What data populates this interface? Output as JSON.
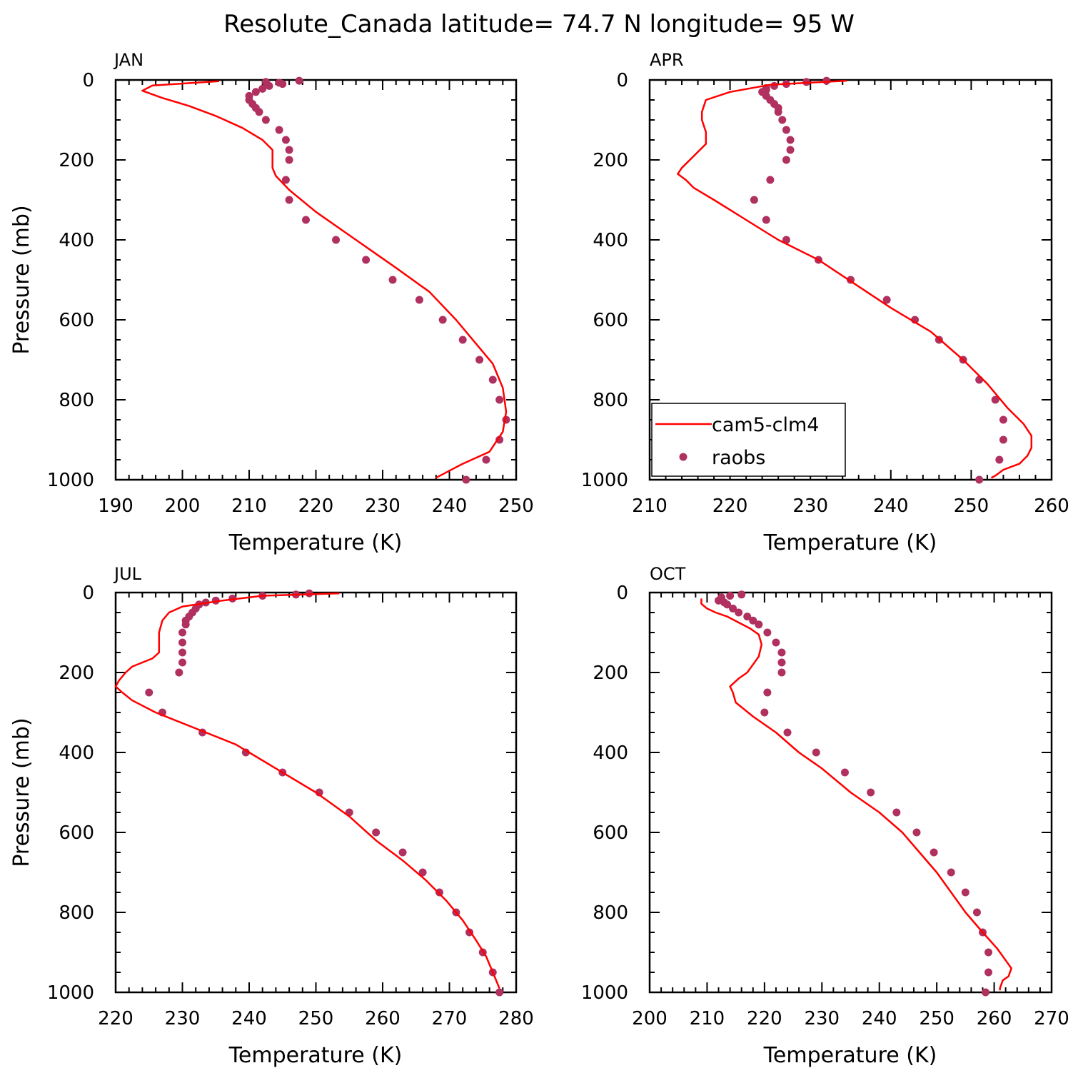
{
  "figure": {
    "title": "Resolute_Canada  latitude= 74.7 N longitude= 95 W"
  },
  "legend": {
    "items": [
      {
        "label": "cam5-clm4",
        "kind": "line"
      },
      {
        "label": "raobs",
        "kind": "dot"
      }
    ]
  },
  "colors": {
    "model": "#ff0000",
    "obs": "#b03060",
    "axes": "#000000",
    "background": "#ffffff"
  },
  "chart_data": [
    {
      "type": "line",
      "panel": "JAN",
      "xlabel": "Temperature (K)",
      "ylabel": "Pressure (mb)",
      "xlim": [
        190,
        250
      ],
      "ylim": [
        1000,
        0
      ],
      "xticks": [
        190,
        200,
        210,
        220,
        230,
        240,
        250
      ],
      "yticks": [
        0,
        200,
        400,
        600,
        800,
        1000
      ],
      "model": {
        "name": "cam5-clm4",
        "points": [
          [
            205.5,
            3
          ],
          [
            195.5,
            14
          ],
          [
            194,
            27
          ],
          [
            197,
            45
          ],
          [
            201,
            65
          ],
          [
            205,
            90
          ],
          [
            209,
            120
          ],
          [
            212,
            150
          ],
          [
            213.5,
            175
          ],
          [
            213.5,
            200
          ],
          [
            213.5,
            220
          ],
          [
            214,
            240
          ],
          [
            216,
            275
          ],
          [
            220,
            330
          ],
          [
            226,
            400
          ],
          [
            232,
            470
          ],
          [
            237,
            530
          ],
          [
            241,
            600
          ],
          [
            244,
            660
          ],
          [
            246.5,
            710
          ],
          [
            248,
            770
          ],
          [
            248.5,
            830
          ],
          [
            248,
            880
          ],
          [
            246,
            930
          ],
          [
            242,
            960
          ],
          [
            238,
            995
          ]
        ]
      },
      "obs": {
        "name": "raobs",
        "points": [
          [
            217.5,
            2
          ],
          [
            212.5,
            5
          ],
          [
            214.5,
            7
          ],
          [
            215,
            10
          ],
          [
            213,
            15
          ],
          [
            212,
            22
          ],
          [
            211,
            30
          ],
          [
            210,
            40
          ],
          [
            210,
            50
          ],
          [
            210.5,
            60
          ],
          [
            211,
            70
          ],
          [
            211.5,
            80
          ],
          [
            212.5,
            100
          ],
          [
            214.5,
            125
          ],
          [
            215.5,
            150
          ],
          [
            216,
            175
          ],
          [
            216,
            200
          ],
          [
            215.5,
            250
          ],
          [
            216,
            300
          ],
          [
            218.5,
            350
          ],
          [
            223,
            400
          ],
          [
            227.5,
            450
          ],
          [
            231.5,
            500
          ],
          [
            235.5,
            550
          ],
          [
            239,
            600
          ],
          [
            242,
            650
          ],
          [
            244.5,
            700
          ],
          [
            246.5,
            750
          ],
          [
            247.5,
            800
          ],
          [
            248.5,
            850
          ],
          [
            247.5,
            900
          ],
          [
            245.5,
            950
          ],
          [
            242.5,
            1000
          ]
        ]
      }
    },
    {
      "type": "line",
      "panel": "APR",
      "xlabel": "Temperature (K)",
      "ylabel": "",
      "xlim": [
        210,
        260
      ],
      "ylim": [
        1000,
        0
      ],
      "xticks": [
        210,
        220,
        230,
        240,
        250,
        260
      ],
      "yticks": [
        0,
        200,
        400,
        600,
        800,
        1000
      ],
      "model": {
        "name": "cam5-clm4",
        "points": [
          [
            234.5,
            2
          ],
          [
            225,
            12
          ],
          [
            220,
            30
          ],
          [
            217,
            50
          ],
          [
            216.5,
            80
          ],
          [
            216.5,
            100
          ],
          [
            217,
            130
          ],
          [
            217,
            160
          ],
          [
            216,
            180
          ],
          [
            215,
            200
          ],
          [
            214,
            220
          ],
          [
            213.5,
            235
          ],
          [
            214.5,
            250
          ],
          [
            215.5,
            270
          ],
          [
            218,
            300
          ],
          [
            222,
            350
          ],
          [
            226,
            400
          ],
          [
            231,
            450
          ],
          [
            235.5,
            510
          ],
          [
            240,
            570
          ],
          [
            245,
            630
          ],
          [
            249,
            700
          ],
          [
            252,
            760
          ],
          [
            254.5,
            820
          ],
          [
            256.5,
            860
          ],
          [
            257.5,
            890
          ],
          [
            257.5,
            920
          ],
          [
            257,
            940
          ],
          [
            256,
            960
          ],
          [
            254,
            975
          ],
          [
            253,
            990
          ],
          [
            252.5,
            995
          ]
        ]
      },
      "obs": {
        "name": "raobs",
        "points": [
          [
            232,
            2
          ],
          [
            229.5,
            5
          ],
          [
            227,
            10
          ],
          [
            225.5,
            15
          ],
          [
            224.5,
            20
          ],
          [
            224.5,
            25
          ],
          [
            224,
            30
          ],
          [
            224.5,
            40
          ],
          [
            225,
            50
          ],
          [
            225.5,
            60
          ],
          [
            226,
            70
          ],
          [
            226,
            80
          ],
          [
            226.5,
            100
          ],
          [
            227,
            125
          ],
          [
            227.5,
            150
          ],
          [
            227.5,
            175
          ],
          [
            227,
            200
          ],
          [
            225,
            250
          ],
          [
            223,
            300
          ],
          [
            224.5,
            350
          ],
          [
            227,
            400
          ],
          [
            231,
            450
          ],
          [
            235,
            500
          ],
          [
            239.5,
            550
          ],
          [
            243,
            600
          ],
          [
            246,
            650
          ],
          [
            249,
            700
          ],
          [
            251,
            750
          ],
          [
            253,
            800
          ],
          [
            254,
            850
          ],
          [
            254,
            900
          ],
          [
            253.5,
            950
          ],
          [
            251,
            1000
          ]
        ]
      }
    },
    {
      "type": "line",
      "panel": "JUL",
      "xlabel": "Temperature (K)",
      "ylabel": "Pressure (mb)",
      "xlim": [
        220,
        280
      ],
      "ylim": [
        1000,
        0
      ],
      "xticks": [
        220,
        230,
        240,
        250,
        260,
        270,
        280
      ],
      "yticks": [
        0,
        200,
        400,
        600,
        800,
        1000
      ],
      "model": {
        "name": "cam5-clm4",
        "points": [
          [
            253.5,
            2
          ],
          [
            242,
            8
          ],
          [
            236,
            20
          ],
          [
            230,
            35
          ],
          [
            228,
            50
          ],
          [
            227,
            70
          ],
          [
            226.5,
            100
          ],
          [
            226.5,
            130
          ],
          [
            226.5,
            150
          ],
          [
            225.5,
            165
          ],
          [
            222.5,
            185
          ],
          [
            221.5,
            200
          ],
          [
            220.5,
            220
          ],
          [
            220,
            235
          ],
          [
            221,
            250
          ],
          [
            222.5,
            270
          ],
          [
            226,
            300
          ],
          [
            232,
            340
          ],
          [
            238,
            380
          ],
          [
            244,
            440
          ],
          [
            250,
            500
          ],
          [
            255,
            560
          ],
          [
            259,
            620
          ],
          [
            263,
            670
          ],
          [
            266.5,
            720
          ],
          [
            269.5,
            770
          ],
          [
            272,
            820
          ],
          [
            274,
            870
          ],
          [
            275.5,
            910
          ],
          [
            276.5,
            950
          ],
          [
            277.5,
            990
          ]
        ]
      },
      "obs": {
        "name": "raobs",
        "points": [
          [
            249,
            2
          ],
          [
            247,
            5
          ],
          [
            242,
            8
          ],
          [
            237.5,
            15
          ],
          [
            235,
            20
          ],
          [
            233.5,
            25
          ],
          [
            232.5,
            30
          ],
          [
            232,
            40
          ],
          [
            231.5,
            50
          ],
          [
            231,
            60
          ],
          [
            230.5,
            70
          ],
          [
            230.5,
            80
          ],
          [
            230,
            100
          ],
          [
            230,
            125
          ],
          [
            230,
            150
          ],
          [
            230,
            175
          ],
          [
            229.5,
            200
          ],
          [
            225,
            250
          ],
          [
            227,
            300
          ],
          [
            233,
            350
          ],
          [
            239.5,
            400
          ],
          [
            245,
            450
          ],
          [
            250.5,
            500
          ],
          [
            255,
            550
          ],
          [
            259,
            600
          ],
          [
            263,
            650
          ],
          [
            266,
            700
          ],
          [
            268.5,
            750
          ],
          [
            271,
            800
          ],
          [
            273,
            850
          ],
          [
            275,
            900
          ],
          [
            276.5,
            950
          ],
          [
            277.5,
            1000
          ]
        ]
      }
    },
    {
      "type": "line",
      "panel": "OCT",
      "xlabel": "Temperature (K)",
      "ylabel": "",
      "xlim": [
        200,
        270
      ],
      "ylim": [
        1000,
        0
      ],
      "xticks": [
        200,
        210,
        220,
        230,
        240,
        250,
        260,
        270
      ],
      "yticks": [
        0,
        200,
        400,
        600,
        800,
        1000
      ],
      "model": {
        "name": "cam5-clm4",
        "points": [
          [
            209,
            15
          ],
          [
            209,
            28
          ],
          [
            210,
            40
          ],
          [
            211.5,
            50
          ],
          [
            213.5,
            60
          ],
          [
            215.5,
            75
          ],
          [
            217.5,
            90
          ],
          [
            219,
            105
          ],
          [
            219.5,
            130
          ],
          [
            219,
            160
          ],
          [
            218,
            180
          ],
          [
            217,
            200
          ],
          [
            215.5,
            215
          ],
          [
            214,
            235
          ],
          [
            214.5,
            250
          ],
          [
            215,
            275
          ],
          [
            218,
            310
          ],
          [
            222,
            350
          ],
          [
            226,
            400
          ],
          [
            230,
            440
          ],
          [
            235,
            500
          ],
          [
            240,
            550
          ],
          [
            244,
            600
          ],
          [
            247,
            650
          ],
          [
            250,
            700
          ],
          [
            252.5,
            750
          ],
          [
            255,
            800
          ],
          [
            258,
            850
          ],
          [
            260.5,
            890
          ],
          [
            262,
            920
          ],
          [
            263,
            940
          ],
          [
            262.5,
            960
          ],
          [
            261.5,
            970
          ],
          [
            261,
            990
          ],
          [
            261,
            995
          ]
        ]
      },
      "obs": {
        "name": "raobs",
        "points": [
          [
            216,
            5
          ],
          [
            214,
            8
          ],
          [
            212.5,
            12
          ],
          [
            212.5,
            15
          ],
          [
            212,
            20
          ],
          [
            213,
            25
          ],
          [
            213.5,
            30
          ],
          [
            214.5,
            40
          ],
          [
            215.5,
            50
          ],
          [
            217,
            60
          ],
          [
            218,
            70
          ],
          [
            219,
            80
          ],
          [
            220.5,
            100
          ],
          [
            222,
            125
          ],
          [
            223,
            150
          ],
          [
            223,
            175
          ],
          [
            223,
            200
          ],
          [
            220.5,
            250
          ],
          [
            220,
            300
          ],
          [
            224,
            350
          ],
          [
            229,
            400
          ],
          [
            234,
            450
          ],
          [
            238.5,
            500
          ],
          [
            243,
            550
          ],
          [
            246.5,
            600
          ],
          [
            249.5,
            650
          ],
          [
            252.5,
            700
          ],
          [
            255,
            750
          ],
          [
            257,
            800
          ],
          [
            258,
            850
          ],
          [
            259,
            900
          ],
          [
            259,
            950
          ],
          [
            258.5,
            1000
          ]
        ]
      }
    }
  ]
}
